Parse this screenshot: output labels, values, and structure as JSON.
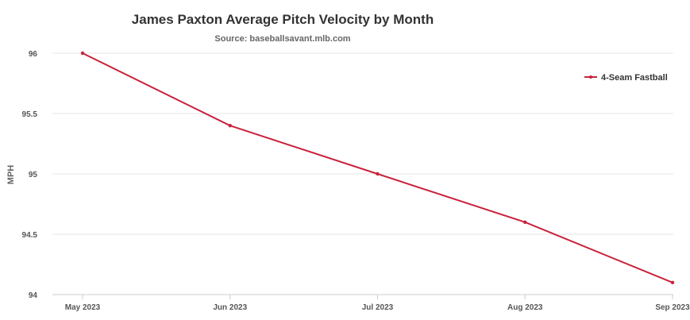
{
  "chart_data": {
    "type": "line",
    "title": "James Paxton Average Pitch Velocity by Month",
    "subtitle": "Source: baseballsavant.mlb.com",
    "xlabel": "",
    "ylabel": "MPH",
    "categories": [
      "May 2023",
      "Jun 2023",
      "Jul 2023",
      "Aug 2023",
      "Sep 2023"
    ],
    "series": [
      {
        "name": "4-Seam Fastball",
        "values": [
          96.0,
          95.4,
          95.0,
          94.6,
          94.1
        ],
        "color": "#c8233c"
      }
    ],
    "ylim": [
      94,
      96
    ],
    "yticks": [
      94,
      94.5,
      95,
      95.5,
      96
    ],
    "ytick_labels": [
      "94",
      "94.5",
      "95",
      "95.5",
      "96"
    ],
    "grid": true,
    "legend_position": "top-right"
  }
}
